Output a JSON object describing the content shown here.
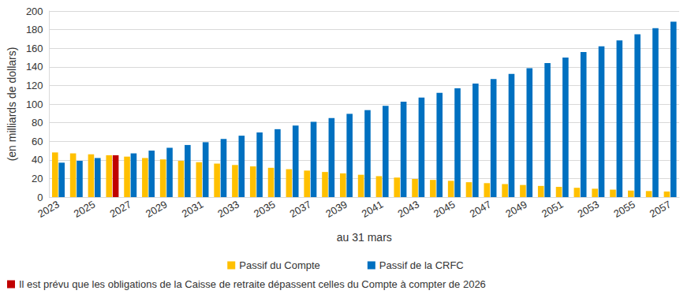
{
  "chart_data": {
    "type": "bar",
    "y_label": "(en milliards de dollars)",
    "x_label": "au 31 mars",
    "categories": [
      "2023",
      null,
      "2025",
      null,
      "2027",
      null,
      "2029",
      null,
      "2031",
      null,
      "2033",
      null,
      "2035",
      null,
      "2037",
      null,
      "2039",
      null,
      "2041",
      null,
      "2043",
      null,
      "2045",
      null,
      "2047",
      null,
      "2049",
      null,
      "2051",
      null,
      "2053",
      null,
      "2055",
      null,
      "2057"
    ],
    "series": [
      {
        "name": "Passif du Compte",
        "color": "#ffc000",
        "values": [
          48,
          47,
          46,
          45,
          43.5,
          42,
          40.5,
          39,
          37.5,
          36,
          34.5,
          33,
          31.5,
          30,
          28.5,
          27,
          25.5,
          24,
          22.5,
          21,
          19.5,
          18.5,
          17.5,
          16,
          15,
          14,
          13,
          12,
          11,
          10,
          9,
          8,
          7,
          6.5,
          6
        ]
      },
      {
        "name": "Passif de la CRFC",
        "color": "#0070c0",
        "values": [
          37,
          39,
          42,
          null,
          47,
          50,
          53,
          56,
          59,
          62.5,
          66,
          69.5,
          73,
          77,
          81,
          85,
          89.5,
          93.5,
          98,
          102.5,
          107,
          112,
          117,
          122,
          127,
          132.5,
          138.5,
          144,
          150,
          156,
          162,
          168.5,
          175,
          181.5,
          188.5
        ]
      },
      {
        "name": "Il est prévu que les obligations de la Caisse de retraite dépassent celles du Compte à compter de 2026",
        "color": "#c00000",
        "values": [
          null,
          null,
          null,
          45,
          null,
          null,
          null,
          null,
          null,
          null,
          null,
          null,
          null,
          null,
          null,
          null,
          null,
          null,
          null,
          null,
          null,
          null,
          null,
          null,
          null,
          null,
          null,
          null,
          null,
          null,
          null,
          null,
          null,
          null,
          null
        ]
      }
    ],
    "ylim": [
      0,
      200
    ],
    "yticks": [
      0,
      20,
      40,
      60,
      80,
      100,
      120,
      140,
      160,
      180,
      200
    ],
    "grid": true,
    "legend": "bottom"
  }
}
